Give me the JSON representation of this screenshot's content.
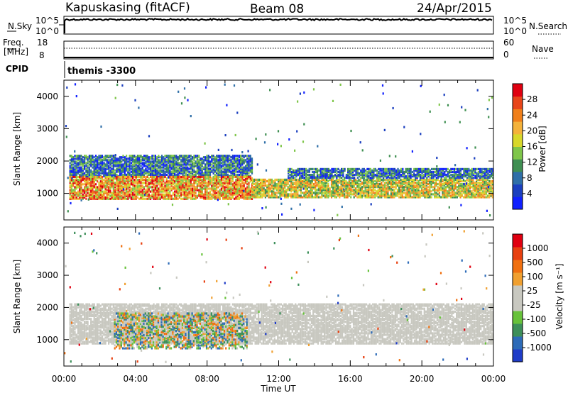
{
  "header": {
    "station": "Kapuskasing (fitACF)",
    "beam": "Beam 08",
    "date": "24/Apr/2015"
  },
  "strip_labels": {
    "nsky": "N.Sky",
    "nsky_top": "10^5",
    "nsky_bottom": "10^0",
    "nsearch": "N.Search",
    "nsearch_top": "10^5",
    "nsearch_bottom": "10^0",
    "freq": "Freq.",
    "freq_unit": "[MHz]",
    "freq_top": "18",
    "freq_bottom": "8",
    "nave": "Nave",
    "nave_top": "60",
    "nave_bottom": "0",
    "cpid": "CPID",
    "cpid_value": "themis -3300"
  },
  "chart_data": [
    {
      "type": "heatmap",
      "name": "power-panel",
      "ylabel": "Slant Range [km]",
      "xlabel": "",
      "x_ticks": [
        "00:00",
        "04:00",
        "08:00",
        "12:00",
        "16:00",
        "20:00",
        "00:00"
      ],
      "x_range_hours": [
        0,
        24
      ],
      "y_ticks": [
        1000,
        2000,
        3000,
        4000
      ],
      "ylim": [
        180,
        4500
      ],
      "colorbar": {
        "label": "Power [dB]",
        "ticks": [
          "4",
          "8",
          "12",
          "16",
          "20",
          "24",
          "28"
        ],
        "colors": [
          "#1020ff",
          "#1b3fbf",
          "#2f6fa8",
          "#3f8f52",
          "#7fc64a",
          "#d8d82a",
          "#f4b23a",
          "#f07f1a",
          "#e8451a",
          "#e00010"
        ]
      },
      "echo_regions": [
        {
          "t0": 0.3,
          "t1": 10.5,
          "r0": 1500,
          "r1": 2150,
          "level": "low"
        },
        {
          "t0": 0.3,
          "t1": 10.5,
          "r0": 800,
          "r1": 1500,
          "level": "high"
        },
        {
          "t0": 10.5,
          "t1": 24,
          "r0": 850,
          "r1": 1400,
          "level": "mid"
        },
        {
          "t0": 12.5,
          "t1": 24,
          "r0": 1450,
          "r1": 1750,
          "level": "low"
        }
      ]
    },
    {
      "type": "heatmap",
      "name": "velocity-panel",
      "ylabel": "Slant Range [km]",
      "xlabel": "Time UT",
      "x_ticks": [
        "00:00",
        "04:00",
        "08:00",
        "12:00",
        "16:00",
        "20:00",
        "00:00"
      ],
      "x_range_hours": [
        0,
        24
      ],
      "y_ticks": [
        1000,
        2000,
        3000,
        4000
      ],
      "ylim": [
        180,
        4500
      ],
      "colorbar": {
        "label": "Velocity [m s⁻¹]",
        "ticks": [
          "1000",
          "500",
          "100",
          "25",
          "-25",
          "-100",
          "-500",
          "-1000"
        ],
        "colors": [
          "#1f3cc8",
          "#2d6bb8",
          "#3d8f5a",
          "#67c23a",
          "#c8c8c0",
          "#c8c8c0",
          "#f0a030",
          "#f07010",
          "#e84010",
          "#e00010"
        ]
      },
      "echo_regions": [
        {
          "t0": 0.3,
          "t1": 24,
          "r0": 850,
          "r1": 2100,
          "level": "ground"
        },
        {
          "t0": 2.8,
          "t1": 10.2,
          "r0": 700,
          "r1": 1800,
          "level": "ionospheric"
        }
      ]
    }
  ],
  "summary_lines": {
    "nsky_level": 0.82,
    "freq_level": 0.08
  }
}
